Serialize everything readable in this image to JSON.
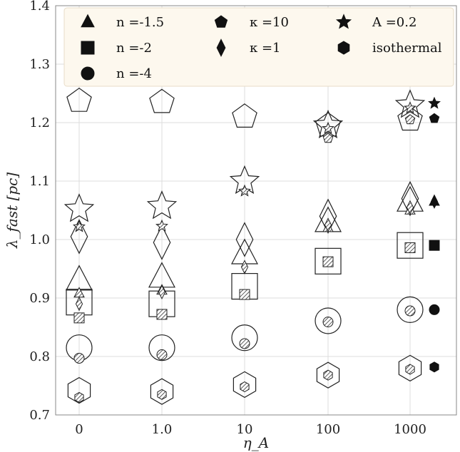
{
  "chart_data": {
    "type": "scatter",
    "xlabel": "η_A",
    "ylabel": "λ_fast [pc]",
    "ylim": [
      0.7,
      1.4
    ],
    "yticks": [
      "0.7",
      "0.8",
      "0.9",
      "1.0",
      "1.1",
      "1.2",
      "1.3",
      "1.4"
    ],
    "categories": [
      "0",
      "1.0",
      "10",
      "100",
      "1000"
    ],
    "grid": true,
    "legend_position": "top",
    "legend": [
      {
        "marker": "triangle",
        "label": "n =-1.5"
      },
      {
        "marker": "pentagon",
        "label": "κ =10"
      },
      {
        "marker": "star",
        "label": "A =0.2"
      },
      {
        "marker": "square",
        "label": "n =-2"
      },
      {
        "marker": "diamond",
        "label": "κ =1"
      },
      {
        "marker": "hexagon",
        "label": "isothermal"
      },
      {
        "marker": "circle",
        "label": "n =-4"
      }
    ],
    "series": [
      {
        "marker": "triangle",
        "large_open": [
          0.93,
          0.935,
          0.975,
          1.03,
          1.065
        ],
        "small_hatched": [
          0.908,
          0.913,
          null,
          1.02,
          1.05
        ],
        "reference": 1.065
      },
      {
        "marker": "square",
        "large_open": [
          0.893,
          0.89,
          0.92,
          0.963,
          0.99
        ],
        "small_hatched": [
          0.866,
          0.872,
          0.906,
          0.962,
          0.986
        ],
        "reference": 0.99
      },
      {
        "marker": "circle",
        "large_open": [
          0.815,
          0.815,
          0.832,
          0.861,
          0.88
        ],
        "small_hatched": [
          0.797,
          0.803,
          0.822,
          0.859,
          0.878
        ],
        "reference": 0.88
      },
      {
        "marker": "pentagon",
        "large_open": [
          1.237,
          1.235,
          1.21,
          1.195,
          1.205
        ],
        "small_hatched": [
          null,
          null,
          null,
          1.173,
          1.205
        ],
        "reference": 1.207
      },
      {
        "marker": "diamond",
        "large_open": [
          1.005,
          0.995,
          1.0,
          1.04,
          1.07
        ],
        "small_hatched": [
          0.89,
          0.91,
          0.953,
          1.025,
          1.055
        ],
        "reference": 1.065
      },
      {
        "marker": "star",
        "large_open": [
          1.052,
          1.057,
          1.1,
          1.195,
          1.23
        ],
        "small_hatched": [
          1.022,
          1.023,
          1.083,
          1.19,
          1.225
        ],
        "reference": 1.233
      },
      {
        "marker": "hexagon",
        "large_open": [
          0.742,
          0.74,
          0.752,
          0.768,
          0.78
        ],
        "small_hatched": [
          0.73,
          0.735,
          0.748,
          0.768,
          0.778
        ],
        "reference": 0.782
      }
    ]
  }
}
